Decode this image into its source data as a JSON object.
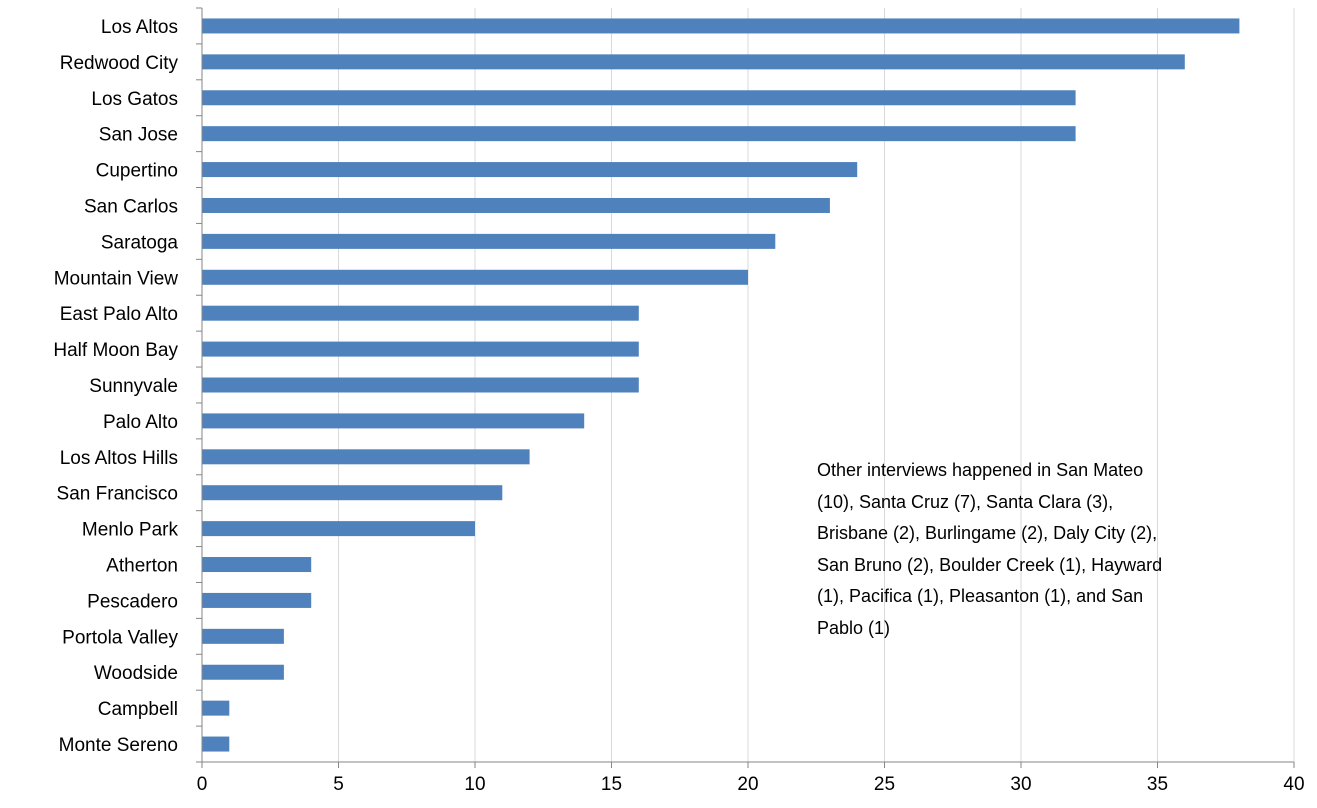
{
  "chart_data": {
    "type": "bar",
    "orientation": "horizontal",
    "categories": [
      "Los Altos",
      "Redwood City",
      "Los Gatos",
      "San Jose",
      "Cupertino",
      "San Carlos",
      "Saratoga",
      "Mountain View",
      "East Palo Alto",
      "Half Moon Bay",
      "Sunnyvale",
      "Palo Alto",
      "Los Altos  Hills",
      "San Francisco",
      "Menlo Park",
      "Atherton",
      "Pescadero",
      "Portola Valley",
      "Woodside",
      "Campbell",
      "Monte Sereno"
    ],
    "values": [
      38,
      36,
      32,
      32,
      24,
      23,
      21,
      20,
      16,
      16,
      16,
      14,
      12,
      11,
      10,
      4,
      4,
      3,
      3,
      1,
      1
    ],
    "xlim": [
      0,
      40
    ],
    "xticks": [
      "0",
      "5",
      "10",
      "15",
      "20",
      "25",
      "30",
      "35",
      "40"
    ],
    "title": "",
    "xlabel": "",
    "ylabel": "",
    "grid": "vertical",
    "bar_color": "#4F81BD",
    "annotation": "Other interviews happened in San Mateo (10), Santa Cruz (7), Santa Clara (3), Brisbane (2), Burlingame (2), Daly City (2), San Bruno (2), Boulder Creek (1), Hayward (1), Pacifica (1), Pleasanton (1), and San Pablo (1)"
  }
}
